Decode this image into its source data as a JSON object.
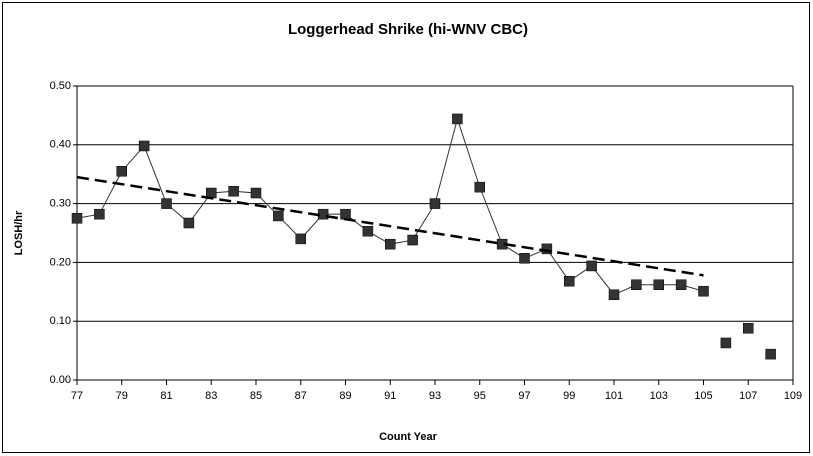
{
  "chart_data": {
    "type": "line",
    "title": "Loggerhead Shrike (hi-WNV CBC)",
    "x_label": "Count Year",
    "y_label": "LOSH/hr",
    "x": [
      77,
      78,
      79,
      80,
      81,
      82,
      83,
      84,
      85,
      86,
      87,
      88,
      89,
      90,
      91,
      92,
      93,
      94,
      95,
      96,
      97,
      98,
      99,
      100,
      101,
      102,
      103,
      104,
      105,
      106,
      107,
      108
    ],
    "series": [
      {
        "color": "#333333",
        "line": true,
        "values": [
          0.275,
          0.282,
          0.355,
          0.398,
          0.3,
          0.267,
          0.318,
          0.321,
          0.318,
          0.279,
          0.24,
          0.282,
          0.282,
          0.253,
          0.231,
          0.238,
          0.3,
          0.444,
          0.328,
          0.231,
          0.207,
          0.223,
          0.168,
          0.194,
          0.145,
          0.162,
          0.162,
          0.162,
          0.151,
          null,
          null,
          null
        ]
      },
      {
        "color": "#333333",
        "line": false,
        "values": [
          null,
          null,
          null,
          null,
          null,
          null,
          null,
          null,
          null,
          null,
          null,
          null,
          null,
          null,
          null,
          null,
          null,
          null,
          null,
          null,
          null,
          null,
          null,
          null,
          null,
          null,
          null,
          null,
          null,
          0.063,
          0.088,
          0.044
        ]
      }
    ],
    "trendline": {
      "x": [
        77,
        105
      ],
      "values": [
        0.345,
        0.178
      ],
      "color": "#000000",
      "dashed": true
    },
    "xlim": [
      77,
      109
    ],
    "xticks": [
      77,
      79,
      81,
      83,
      85,
      87,
      89,
      91,
      93,
      95,
      97,
      99,
      101,
      103,
      105,
      107,
      109
    ],
    "ylim": [
      0,
      0.5
    ],
    "yticks": [
      {
        "value": 0,
        "label": "0.00"
      },
      {
        "value": 0.1,
        "label": "0.10"
      },
      {
        "value": 0.2,
        "label": "0.20"
      },
      {
        "value": 0.3,
        "label": "0.30"
      },
      {
        "value": 0.4,
        "label": "0.40"
      },
      {
        "value": 0.5,
        "label": "0.50"
      }
    ],
    "grid": true
  }
}
